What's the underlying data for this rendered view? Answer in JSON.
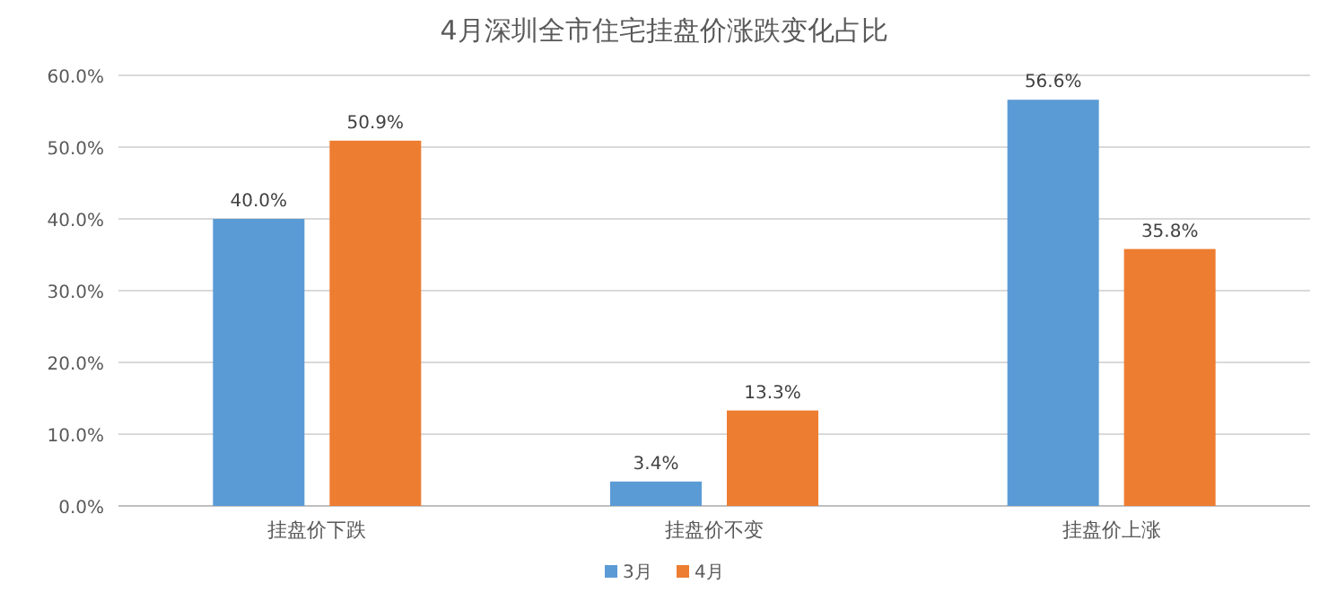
{
  "chart_data": {
    "type": "bar",
    "title": "4月深圳全市住宅挂盘价涨跌变化占比",
    "categories": [
      "挂盘价下跌",
      "挂盘价不变",
      "挂盘价上涨"
    ],
    "series": [
      {
        "name": "3月",
        "color": "#5b9bd5",
        "values": [
          40.0,
          3.4,
          56.6
        ],
        "value_labels": [
          "40.0%",
          "3.4%",
          "56.6%"
        ]
      },
      {
        "name": "4月",
        "color": "#ed7d31",
        "values": [
          50.9,
          13.3,
          35.8
        ],
        "value_labels": [
          "50.9%",
          "13.3%",
          "35.8%"
        ]
      }
    ],
    "ylim": [
      0,
      60
    ],
    "yticks": [
      {
        "value": 0,
        "label": "0.0%"
      },
      {
        "value": 10,
        "label": "10.0%"
      },
      {
        "value": 20,
        "label": "20.0%"
      },
      {
        "value": 30,
        "label": "30.0%"
      },
      {
        "value": 40,
        "label": "40.0%"
      },
      {
        "value": 50,
        "label": "50.0%"
      },
      {
        "value": 60,
        "label": "60.0%"
      }
    ],
    "grid": "y",
    "legend": "bottom"
  }
}
